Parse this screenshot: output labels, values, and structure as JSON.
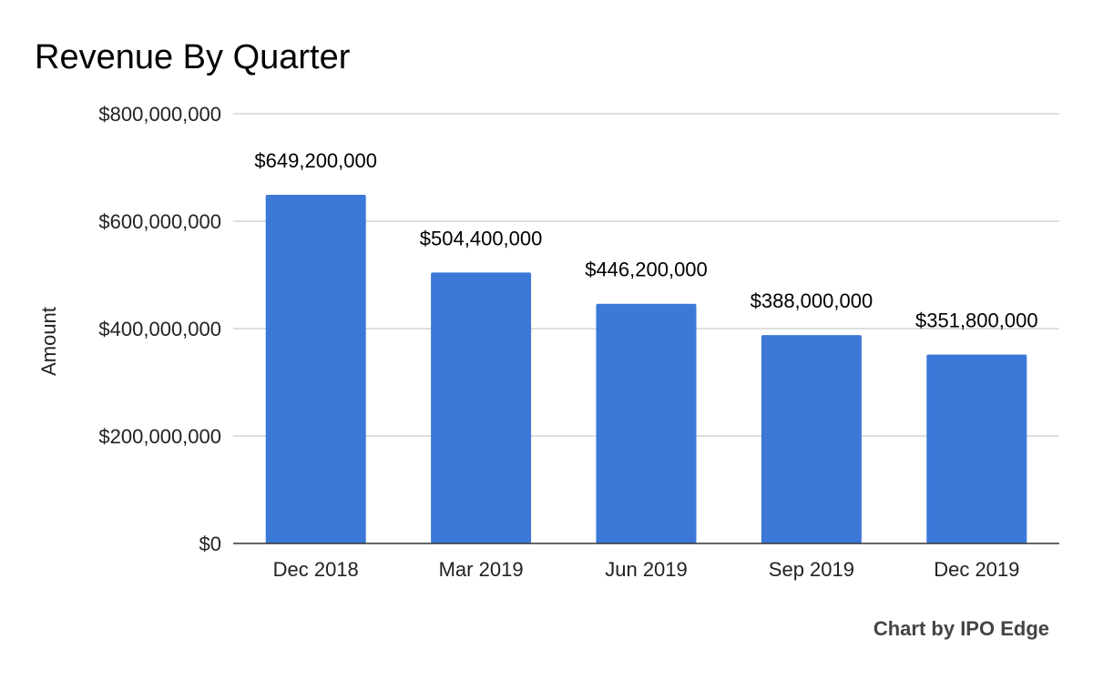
{
  "chart_data": {
    "type": "bar",
    "title": "Revenue By Quarter",
    "xlabel": "",
    "ylabel": "Amount",
    "categories": [
      "Dec 2018",
      "Mar 2019",
      "Jun 2019",
      "Sep 2019",
      "Dec 2019"
    ],
    "values": [
      649200000,
      504400000,
      446200000,
      388000000,
      351800000
    ],
    "data_labels": [
      "$649,200,000",
      "$504,400,000",
      "$446,200,000",
      "$388,000,000",
      "$351,800,000"
    ],
    "ylim": [
      0,
      800000000
    ],
    "yticks": [
      0,
      200000000,
      400000000,
      600000000,
      800000000
    ],
    "ytick_labels": [
      "$0",
      "$200,000,000",
      "$400,000,000",
      "$600,000,000",
      "$800,000,000"
    ],
    "grid": true,
    "legend": "none",
    "bar_color": "#3c78d8",
    "credit": "Chart by IPO Edge"
  }
}
